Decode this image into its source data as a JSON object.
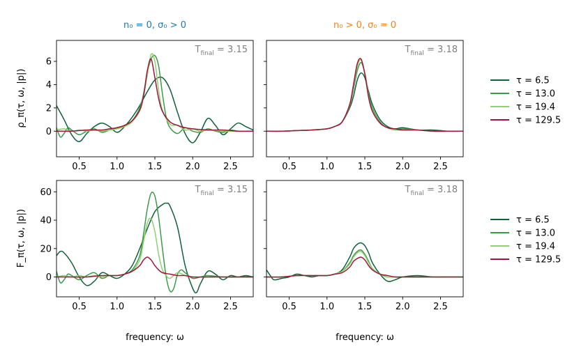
{
  "figure": {
    "col_titles": [
      {
        "text": "n₀ = 0, σ₀ > 0",
        "color": "#1f77b4"
      },
      {
        "text": "n₀ > 0, σ₀ = 0",
        "color": "#ff7f0e"
      }
    ],
    "xlabel": "frequency: ω",
    "row_ylabels": [
      "ρ_π(τ, ω, |p|)",
      "F_π(τ, ω, |p|)"
    ],
    "legend": [
      {
        "label": "τ = 6.5",
        "color": "#10603a"
      },
      {
        "label": "τ = 13.0",
        "color": "#3a9a4c"
      },
      {
        "label": "τ = 19.4",
        "color": "#8fd06e"
      },
      {
        "label": "τ = 129.5",
        "color": "#a0143a"
      }
    ]
  },
  "chart_data": [
    {
      "type": "line",
      "panel": "top-left",
      "title": "",
      "annotation": "T_final = 3.15",
      "xlim": [
        0.2,
        2.8
      ],
      "ylim": [
        -2.2,
        7.8
      ],
      "xticks": [
        0.5,
        1.0,
        1.5,
        2.0,
        2.5
      ],
      "xtick_labels": [
        "0.5",
        "1.0",
        "1.5",
        "2.0",
        "2.5"
      ],
      "yticks": [
        0,
        2,
        4,
        6
      ],
      "ytick_labels": [
        "0",
        "2",
        "4",
        "6"
      ],
      "series": [
        {
          "name": "τ = 6.5",
          "x": [
            0.2,
            0.3,
            0.4,
            0.5,
            0.6,
            0.7,
            0.8,
            0.9,
            1.0,
            1.1,
            1.2,
            1.3,
            1.4,
            1.5,
            1.6,
            1.7,
            1.8,
            1.9,
            2.0,
            2.1,
            2.2,
            2.3,
            2.4,
            2.5,
            2.6,
            2.7,
            2.8
          ],
          "y": [
            2.2,
            1.0,
            -0.3,
            -0.9,
            -0.2,
            0.4,
            0.7,
            0.4,
            -0.1,
            0.4,
            1.2,
            2.2,
            3.4,
            4.4,
            4.6,
            3.6,
            1.6,
            -0.2,
            -1.0,
            -0.1,
            1.1,
            0.5,
            -0.3,
            0.2,
            0.7,
            0.4,
            0.1
          ]
        },
        {
          "name": "τ = 13.0",
          "x": [
            0.2,
            0.25,
            0.3,
            0.35,
            0.4,
            0.5,
            0.6,
            0.7,
            0.8,
            0.9,
            1.0,
            1.1,
            1.2,
            1.3,
            1.35,
            1.4,
            1.45,
            1.5,
            1.55,
            1.6,
            1.65,
            1.7,
            1.8,
            1.9,
            2.0,
            2.1,
            2.2,
            2.3,
            2.4,
            2.5,
            2.6,
            2.7,
            2.8
          ],
          "y": [
            0.3,
            -0.5,
            -0.2,
            0.3,
            0.1,
            -0.3,
            0.0,
            0.2,
            -0.1,
            0.1,
            0.3,
            0.5,
            0.9,
            2.0,
            3.2,
            5.0,
            6.2,
            6.5,
            5.6,
            3.2,
            1.2,
            0.3,
            -0.2,
            0.3,
            0.0,
            -0.1,
            0.2,
            0.0,
            -0.1,
            0.1,
            0.0,
            0.0,
            0.0
          ]
        },
        {
          "name": "τ = 19.4",
          "x": [
            0.2,
            0.3,
            0.4,
            0.5,
            0.6,
            0.7,
            0.8,
            0.9,
            1.0,
            1.1,
            1.2,
            1.3,
            1.35,
            1.4,
            1.45,
            1.5,
            1.55,
            1.6,
            1.7,
            1.8,
            1.9,
            2.0,
            2.1,
            2.2,
            2.4,
            2.6,
            2.8
          ],
          "y": [
            0.1,
            0.2,
            0.0,
            0.1,
            0.0,
            0.1,
            0.0,
            0.1,
            0.2,
            0.4,
            0.8,
            1.8,
            3.0,
            4.8,
            6.6,
            6.0,
            3.5,
            1.8,
            0.6,
            0.5,
            0.1,
            0.2,
            0.0,
            0.1,
            0.0,
            0.0,
            0.0
          ]
        },
        {
          "name": "τ = 129.5",
          "x": [
            0.2,
            0.4,
            0.6,
            0.8,
            0.9,
            1.0,
            1.1,
            1.2,
            1.3,
            1.35,
            1.4,
            1.45,
            1.5,
            1.55,
            1.6,
            1.7,
            1.8,
            1.9,
            2.0,
            2.2,
            2.4,
            2.6,
            2.8
          ],
          "y": [
            0.0,
            0.0,
            0.1,
            0.1,
            0.2,
            0.3,
            0.5,
            0.9,
            1.8,
            3.0,
            5.2,
            6.2,
            4.6,
            2.8,
            1.7,
            0.8,
            0.5,
            0.3,
            0.2,
            0.1,
            0.1,
            0.0,
            0.0
          ]
        }
      ]
    },
    {
      "type": "line",
      "panel": "top-right",
      "title": "",
      "annotation": "T_final = 3.18",
      "xlim": [
        0.2,
        2.8
      ],
      "ylim": [
        -2.2,
        7.8
      ],
      "xticks": [
        0.5,
        1.0,
        1.5,
        2.0,
        2.5
      ],
      "xtick_labels": [
        "0.5",
        "1.0",
        "1.5",
        "2.0",
        "2.5"
      ],
      "yticks": [
        0,
        2,
        4,
        6
      ],
      "ytick_labels": [],
      "series": [
        {
          "name": "τ = 6.5",
          "x": [
            0.2,
            0.4,
            0.6,
            0.8,
            1.0,
            1.1,
            1.2,
            1.3,
            1.35,
            1.4,
            1.45,
            1.5,
            1.55,
            1.6,
            1.7,
            1.8,
            1.9,
            2.0,
            2.2,
            2.4,
            2.6,
            2.8
          ],
          "y": [
            0.0,
            0.0,
            0.05,
            0.1,
            0.2,
            0.4,
            0.8,
            2.0,
            3.0,
            4.4,
            5.0,
            4.6,
            3.4,
            2.3,
            1.0,
            0.4,
            0.2,
            0.3,
            0.1,
            0.1,
            0.0,
            0.0
          ]
        },
        {
          "name": "τ = 13.0",
          "x": [
            0.2,
            0.4,
            0.6,
            0.8,
            1.0,
            1.1,
            1.2,
            1.3,
            1.35,
            1.4,
            1.45,
            1.5,
            1.55,
            1.6,
            1.7,
            1.8,
            1.9,
            2.0,
            2.2,
            2.4,
            2.6,
            2.8
          ],
          "y": [
            0.0,
            0.0,
            0.05,
            0.1,
            0.2,
            0.4,
            0.8,
            2.2,
            3.6,
            5.2,
            5.9,
            5.0,
            3.2,
            2.0,
            0.8,
            0.3,
            0.1,
            0.2,
            0.1,
            0.0,
            0.0,
            0.0
          ]
        },
        {
          "name": "τ = 19.4",
          "x": [
            0.2,
            0.4,
            0.6,
            0.8,
            1.0,
            1.1,
            1.2,
            1.3,
            1.35,
            1.4,
            1.45,
            1.5,
            1.55,
            1.6,
            1.7,
            1.8,
            1.9,
            2.0,
            2.2,
            2.4,
            2.6,
            2.8
          ],
          "y": [
            0.0,
            0.0,
            0.05,
            0.1,
            0.2,
            0.4,
            0.8,
            2.2,
            3.8,
            5.6,
            6.1,
            5.0,
            3.0,
            1.8,
            0.7,
            0.3,
            0.1,
            0.1,
            0.1,
            0.0,
            0.0,
            0.0
          ]
        },
        {
          "name": "τ = 129.5",
          "x": [
            0.2,
            0.4,
            0.6,
            0.8,
            1.0,
            1.1,
            1.2,
            1.3,
            1.35,
            1.4,
            1.45,
            1.5,
            1.55,
            1.6,
            1.7,
            1.8,
            1.9,
            2.0,
            2.2,
            2.4,
            2.6,
            2.8
          ],
          "y": [
            0.0,
            0.0,
            0.05,
            0.1,
            0.2,
            0.4,
            0.8,
            2.3,
            4.0,
            5.8,
            6.2,
            4.9,
            2.9,
            1.7,
            0.7,
            0.3,
            0.2,
            0.1,
            0.1,
            0.0,
            0.0,
            0.0
          ]
        }
      ]
    },
    {
      "type": "line",
      "panel": "bottom-left",
      "title": "",
      "annotation": "T_final = 3.15",
      "xlim": [
        0.2,
        2.8
      ],
      "ylim": [
        -14,
        68
      ],
      "xticks": [
        0.5,
        1.0,
        1.5,
        2.0,
        2.5
      ],
      "xtick_labels": [
        "0.5",
        "1.0",
        "1.5",
        "2.0",
        "2.5"
      ],
      "yticks": [
        0,
        20,
        40,
        60
      ],
      "ytick_labels": [
        "0",
        "20",
        "40",
        "60"
      ],
      "xlabel": "frequency: ω",
      "series": [
        {
          "name": "τ = 6.5",
          "x": [
            0.2,
            0.25,
            0.3,
            0.4,
            0.5,
            0.6,
            0.7,
            0.8,
            0.9,
            1.0,
            1.1,
            1.2,
            1.3,
            1.4,
            1.5,
            1.6,
            1.65,
            1.7,
            1.8,
            1.9,
            2.0,
            2.05,
            2.1,
            2.2,
            2.3,
            2.4,
            2.5,
            2.6,
            2.7,
            2.8
          ],
          "y": [
            15,
            18,
            17,
            10,
            0,
            -6,
            -3,
            3,
            1,
            -1,
            2,
            8,
            20,
            34,
            46,
            51,
            52,
            50,
            35,
            8,
            -8,
            -11,
            -5,
            4,
            2,
            -2,
            1,
            0,
            1,
            0
          ]
        },
        {
          "name": "τ = 13.0",
          "x": [
            0.2,
            0.25,
            0.3,
            0.35,
            0.4,
            0.5,
            0.6,
            0.7,
            0.8,
            0.9,
            1.0,
            1.1,
            1.2,
            1.3,
            1.35,
            1.4,
            1.45,
            1.5,
            1.55,
            1.6,
            1.65,
            1.7,
            1.75,
            1.8,
            1.85,
            1.9,
            2.0,
            2.1,
            2.2,
            2.4,
            2.6,
            2.8
          ],
          "y": [
            4,
            -4,
            -2,
            2,
            1,
            -2,
            1,
            3,
            -1,
            1,
            1,
            2,
            5,
            15,
            30,
            48,
            59,
            57,
            42,
            20,
            0,
            -10,
            -8,
            2,
            5,
            3,
            -1,
            0,
            1,
            0,
            0,
            0
          ]
        },
        {
          "name": "τ = 19.4",
          "x": [
            0.2,
            0.3,
            0.4,
            0.5,
            0.6,
            0.7,
            0.8,
            0.9,
            1.0,
            1.1,
            1.2,
            1.3,
            1.35,
            1.4,
            1.45,
            1.5,
            1.55,
            1.6,
            1.65,
            1.7,
            1.8,
            1.9,
            2.0,
            2.2,
            2.4,
            2.6,
            2.8
          ],
          "y": [
            0,
            1,
            0,
            1,
            0,
            1,
            0,
            1,
            1,
            2,
            4,
            12,
            25,
            38,
            41,
            32,
            16,
            5,
            1,
            -1,
            3,
            1,
            0,
            0,
            0,
            0,
            0
          ]
        },
        {
          "name": "τ = 129.5",
          "x": [
            0.2,
            0.4,
            0.6,
            0.8,
            1.0,
            1.1,
            1.2,
            1.3,
            1.35,
            1.4,
            1.45,
            1.5,
            1.55,
            1.6,
            1.7,
            1.8,
            1.9,
            2.0,
            2.2,
            2.4,
            2.6,
            2.8
          ],
          "y": [
            0,
            0,
            0,
            1,
            1,
            2,
            4,
            8,
            12,
            14,
            12,
            8,
            5,
            3,
            2,
            1,
            1,
            0,
            0,
            0,
            0,
            0
          ]
        }
      ]
    },
    {
      "type": "line",
      "panel": "bottom-right",
      "title": "",
      "annotation": "T_final = 3.18",
      "xlim": [
        0.2,
        2.8
      ],
      "ylim": [
        -14,
        68
      ],
      "xticks": [
        0.5,
        1.0,
        1.5,
        2.0,
        2.5
      ],
      "xtick_labels": [
        "0.5",
        "1.0",
        "1.5",
        "2.0",
        "2.5"
      ],
      "yticks": [
        0,
        20,
        40,
        60
      ],
      "ytick_labels": [],
      "xlabel": "frequency: ω",
      "series": [
        {
          "name": "τ = 6.5",
          "x": [
            0.2,
            0.25,
            0.3,
            0.4,
            0.5,
            0.6,
            0.7,
            0.8,
            0.9,
            1.0,
            1.1,
            1.2,
            1.3,
            1.35,
            1.4,
            1.45,
            1.5,
            1.55,
            1.6,
            1.7,
            1.8,
            1.9,
            2.0,
            2.2,
            2.4,
            2.6,
            2.8
          ],
          "y": [
            5,
            1,
            -2,
            -1,
            0,
            2,
            1,
            0,
            1,
            1,
            2,
            5,
            14,
            20,
            23,
            24,
            22,
            17,
            10,
            2,
            -3,
            -2,
            0,
            1,
            0,
            0,
            0
          ]
        },
        {
          "name": "τ = 13.0",
          "x": [
            0.2,
            0.4,
            0.6,
            0.8,
            1.0,
            1.1,
            1.2,
            1.3,
            1.35,
            1.4,
            1.45,
            1.5,
            1.55,
            1.6,
            1.7,
            1.8,
            1.9,
            2.0,
            2.2,
            2.4,
            2.6,
            2.8
          ],
          "y": [
            0,
            0,
            1,
            1,
            1,
            2,
            4,
            10,
            15,
            18,
            19,
            16,
            11,
            6,
            2,
            0,
            0,
            0,
            0,
            0,
            0,
            0
          ]
        },
        {
          "name": "τ = 19.4",
          "x": [
            0.2,
            0.4,
            0.6,
            0.8,
            1.0,
            1.1,
            1.2,
            1.3,
            1.35,
            1.4,
            1.45,
            1.5,
            1.55,
            1.6,
            1.7,
            1.8,
            1.9,
            2.0,
            2.2,
            2.4,
            2.6,
            2.8
          ],
          "y": [
            0,
            0,
            1,
            1,
            1,
            2,
            4,
            9,
            14,
            17,
            18,
            15,
            10,
            6,
            2,
            0,
            0,
            0,
            0,
            0,
            0,
            0
          ]
        },
        {
          "name": "τ = 129.5",
          "x": [
            0.2,
            0.4,
            0.6,
            0.8,
            1.0,
            1.1,
            1.2,
            1.3,
            1.35,
            1.4,
            1.45,
            1.5,
            1.55,
            1.6,
            1.7,
            1.8,
            1.9,
            2.0,
            2.2,
            2.4,
            2.6,
            2.8
          ],
          "y": [
            0,
            0,
            1,
            1,
            1,
            2,
            3,
            7,
            11,
            13,
            14,
            12,
            8,
            5,
            2,
            1,
            0,
            0,
            0,
            0,
            0,
            0
          ]
        }
      ]
    }
  ]
}
